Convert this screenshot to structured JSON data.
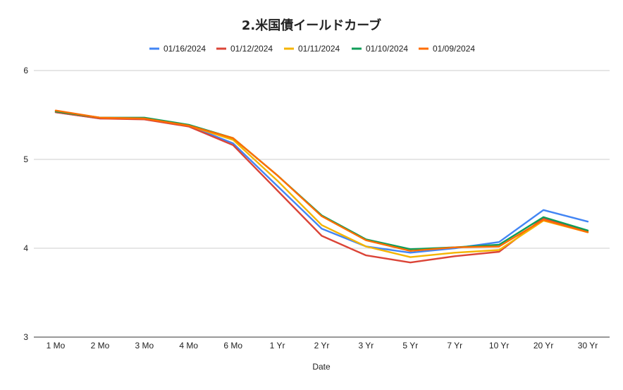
{
  "chart_data": {
    "type": "line",
    "title": "2.米国債イールドカーブ",
    "xlabel": "Date",
    "ylabel": "",
    "ylim": [
      3,
      6
    ],
    "yticks": [
      "3",
      "4",
      "5",
      "6"
    ],
    "grid": true,
    "legend_position": "top",
    "categories": [
      "1 Mo",
      "2 Mo",
      "3 Mo",
      "4 Mo",
      "6 Mo",
      "1 Yr",
      "2 Yr",
      "3 Yr",
      "5 Yr",
      "7 Yr",
      "10 Yr",
      "20 Yr",
      "30 Yr"
    ],
    "series": [
      {
        "name": "01/16/2024",
        "color": "#4285f4",
        "values": [
          5.53,
          5.46,
          5.46,
          5.38,
          5.18,
          4.7,
          4.22,
          4.02,
          3.95,
          4.0,
          4.07,
          4.43,
          4.3
        ]
      },
      {
        "name": "01/12/2024",
        "color": "#db4437",
        "values": [
          5.53,
          5.46,
          5.45,
          5.37,
          5.16,
          4.65,
          4.14,
          3.92,
          3.84,
          3.91,
          3.96,
          4.34,
          4.19
        ]
      },
      {
        "name": "01/11/2024",
        "color": "#f4b400",
        "values": [
          5.54,
          5.47,
          5.46,
          5.38,
          5.22,
          4.76,
          4.26,
          4.02,
          3.9,
          3.95,
          3.98,
          4.31,
          4.18
        ]
      },
      {
        "name": "01/10/2024",
        "color": "#0f9d58",
        "values": [
          5.54,
          5.47,
          5.47,
          5.39,
          5.24,
          4.82,
          4.37,
          4.1,
          3.99,
          4.01,
          4.04,
          4.35,
          4.2
        ]
      },
      {
        "name": "01/09/2024",
        "color": "#ff6d01",
        "values": [
          5.55,
          5.47,
          5.46,
          5.38,
          5.24,
          4.82,
          4.36,
          4.09,
          3.97,
          4.01,
          4.02,
          4.32,
          4.18
        ]
      }
    ]
  }
}
